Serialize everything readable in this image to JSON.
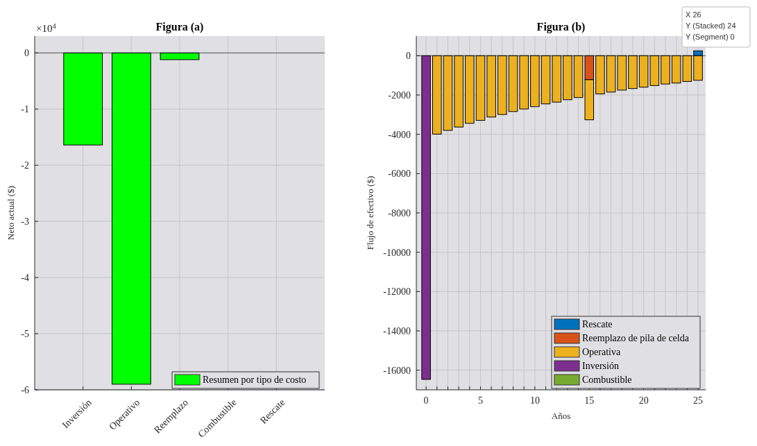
{
  "chart_data": [
    {
      "type": "bar",
      "title": "Figura (a)",
      "ylabel": "Neto actual ($)",
      "categories": [
        "Inversión",
        "Operativo",
        "Reemplazo",
        "Combustible",
        "Rescate"
      ],
      "series": [
        {
          "name": "Resumen por tipo de costo",
          "color": "#00ff00",
          "values": [
            -1.64,
            -5.9,
            -0.12,
            0,
            0
          ]
        }
      ],
      "ylim": [
        -6,
        0.3
      ],
      "yticks": [
        0,
        -1,
        -2,
        -3,
        -4,
        -5,
        -6
      ],
      "grid": true,
      "legend": "bottom right",
      "annotations": [
        "×10$^{4}$"
      ]
    },
    {
      "type": "bar",
      "title": "Figura (b)",
      "xlabel": "Años",
      "ylabel": "Flujo de efectivo ($)",
      "stacked": true,
      "x": [
        0,
        1,
        2,
        3,
        4,
        5,
        6,
        7,
        8,
        9,
        10,
        11,
        12,
        13,
        14,
        15,
        16,
        17,
        18,
        19,
        20,
        21,
        22,
        23,
        24,
        25
      ],
      "series": [
        {
          "name": "Rescate",
          "color": "#0072bd",
          "values": [
            0,
            0,
            0,
            0,
            0,
            0,
            0,
            0,
            0,
            0,
            0,
            0,
            0,
            0,
            0,
            0,
            0,
            0,
            0,
            0,
            0,
            0,
            0,
            0,
            0,
            250
          ]
        },
        {
          "name": "Reemplazo de pila de celda",
          "color": "#d95319",
          "values": [
            0,
            0,
            0,
            0,
            0,
            0,
            0,
            0,
            0,
            0,
            0,
            0,
            0,
            0,
            0,
            -1220,
            0,
            0,
            0,
            0,
            0,
            0,
            0,
            0,
            0,
            0
          ]
        },
        {
          "name": "Operativa",
          "color": "#edb120",
          "values": [
            0,
            -3990,
            -3800,
            -3630,
            -3440,
            -3290,
            -3120,
            -2990,
            -2840,
            -2710,
            -2590,
            -2450,
            -2360,
            -2240,
            -2130,
            -2040,
            -1940,
            -1850,
            -1750,
            -1670,
            -1600,
            -1520,
            -1440,
            -1390,
            -1310,
            -1250
          ]
        },
        {
          "name": "Inversión",
          "color": "#7e2f8e",
          "values": [
            -16470,
            0,
            0,
            0,
            0,
            0,
            0,
            0,
            0,
            0,
            0,
            0,
            0,
            0,
            0,
            0,
            0,
            0,
            0,
            0,
            0,
            0,
            0,
            0,
            0,
            0
          ]
        },
        {
          "name": "Combustible",
          "color": "#77ac30",
          "values": [
            0,
            0,
            0,
            0,
            0,
            0,
            0,
            0,
            0,
            0,
            0,
            0,
            0,
            0,
            0,
            0,
            0,
            0,
            0,
            0,
            0,
            0,
            0,
            0,
            0,
            0
          ]
        }
      ],
      "xlim": [
        -0.9,
        25.7
      ],
      "xticks": [
        0,
        {
          "value": 1,
          "label": null
        },
        {
          "value": 2,
          "label": null
        },
        {
          "value": 3,
          "label": null
        },
        {
          "value": 4,
          "label": null
        },
        5,
        {
          "value": 6,
          "label": null
        },
        {
          "value": 7,
          "label": null
        },
        {
          "value": 8,
          "label": null
        },
        {
          "value": 9,
          "label": null
        },
        10,
        {
          "value": 11,
          "label": null
        },
        {
          "value": 12,
          "label": null
        },
        {
          "value": 13,
          "label": null
        },
        {
          "value": 14,
          "label": null
        },
        15,
        {
          "value": 16,
          "label": null
        },
        {
          "value": 17,
          "label": null
        },
        {
          "value": 18,
          "label": null
        },
        {
          "value": 19,
          "label": null
        },
        20,
        {
          "value": 21,
          "label": null
        },
        {
          "value": 22,
          "label": null
        },
        {
          "value": 23,
          "label": null
        },
        {
          "value": 24,
          "label": null
        },
        25
      ],
      "ylim": [
        -17000,
        1000
      ],
      "yticks": [
        0,
        -2000,
        -4000,
        -6000,
        -8000,
        -10000,
        -12000,
        -14000,
        -16000
      ],
      "grid": true,
      "legend": "bottom right",
      "annotations": [
        "X 26",
        "Y (Stacked) 24",
        "Y (Segment) 0"
      ]
    }
  ]
}
